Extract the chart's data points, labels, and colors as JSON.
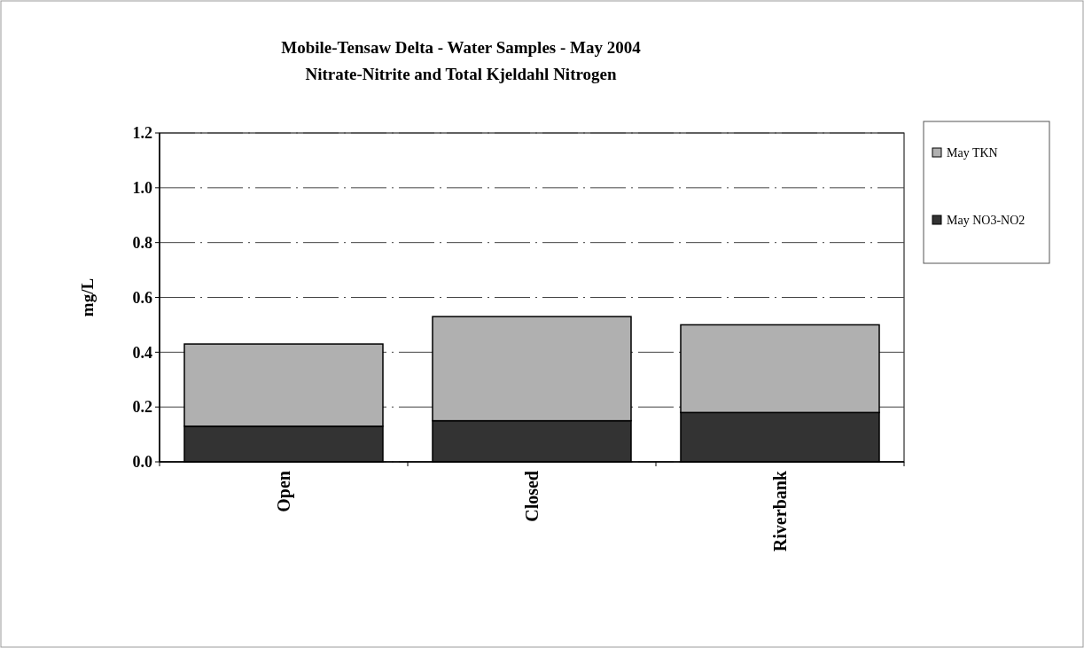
{
  "chart_data": {
    "type": "bar",
    "title": "Mobile-Tensaw Delta - Water Samples - May 2004",
    "subtitle": "Nitrate-Nitrite and Total Kjeldahl Nitrogen",
    "ylabel": "mg/L",
    "categories": [
      "Open",
      "Closed",
      "Riverbank"
    ],
    "stacked": true,
    "series": [
      {
        "name": "May NO3-NO2",
        "color": "#333333",
        "values": [
          0.13,
          0.15,
          0.18
        ]
      },
      {
        "name": "May TKN",
        "color": "#b0b0b0",
        "values": [
          0.3,
          0.38,
          0.32
        ]
      }
    ],
    "ylim": [
      0,
      1.2
    ],
    "yticks": [
      {
        "value": 0,
        "label": "0.0"
      },
      {
        "value": 0.2,
        "label": "0.2"
      },
      {
        "value": 0.4,
        "label": "0.4"
      },
      {
        "value": 0.6,
        "label": "0.6"
      },
      {
        "value": 0.8,
        "label": "0.8"
      },
      {
        "value": 1,
        "label": "1.0"
      },
      {
        "value": 1.2,
        "label": "1.2"
      }
    ],
    "grid": "y",
    "legend": "top right"
  }
}
